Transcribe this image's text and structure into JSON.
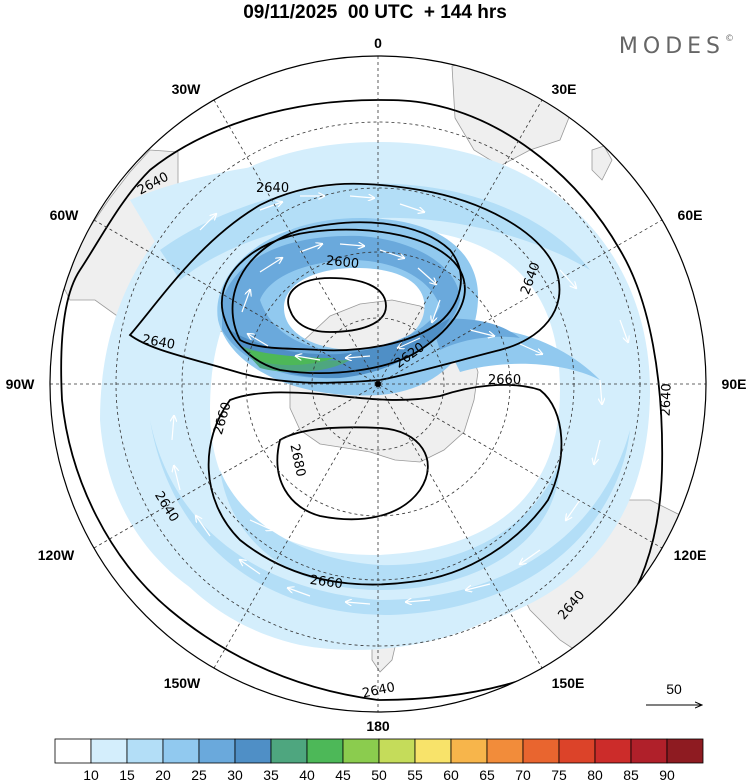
{
  "header": {
    "date": "09/11/2025",
    "run": "00 UTC",
    "lead": "+ 144 hrs"
  },
  "brand": "MODES",
  "brand_mark": "©",
  "longitude_labels": {
    "lon_0": "0",
    "lon_30e": "30E",
    "lon_60e": "60E",
    "lon_90e": "90E",
    "lon_120e": "120E",
    "lon_150e": "150E",
    "lon_180": "180",
    "lon_150w": "150W",
    "lon_120w": "120W",
    "lon_90w": "90W",
    "lon_60w": "60W",
    "lon_30w": "30W"
  },
  "contour_labels": {
    "c2640_a": "2640",
    "c2640_b": "2640",
    "c2640_c": "2640",
    "c2640_d": "2640",
    "c2640_e": "2640",
    "c2640_f": "2640",
    "c2640_g": "2640",
    "c2640_h": "2640",
    "c2600": "2600",
    "c2620": "2620",
    "c2660_a": "2660",
    "c2660_b": "2660",
    "c2660_c": "2660",
    "c2680": "2680"
  },
  "vector_reference": "50",
  "colorbar": {
    "ticks": [
      "10",
      "15",
      "20",
      "25",
      "30",
      "35",
      "40",
      "45",
      "50",
      "55",
      "60",
      "65",
      "70",
      "75",
      "80",
      "85",
      "90"
    ],
    "colors": [
      "#ffffff",
      "#d4eefc",
      "#b3def7",
      "#91c9ef",
      "#6aa9dc",
      "#4f8fc6",
      "#4ea67f",
      "#4db858",
      "#8bcc4e",
      "#c5dc5a",
      "#f8e36a",
      "#f7b54b",
      "#f28c3a",
      "#e9652f",
      "#dc4329",
      "#cc2c2a",
      "#b0202a",
      "#8e1b21"
    ]
  },
  "colors": {
    "land": "#efefef",
    "grid": "#333333",
    "contour": "#000000",
    "vector": "#ffffff"
  }
}
